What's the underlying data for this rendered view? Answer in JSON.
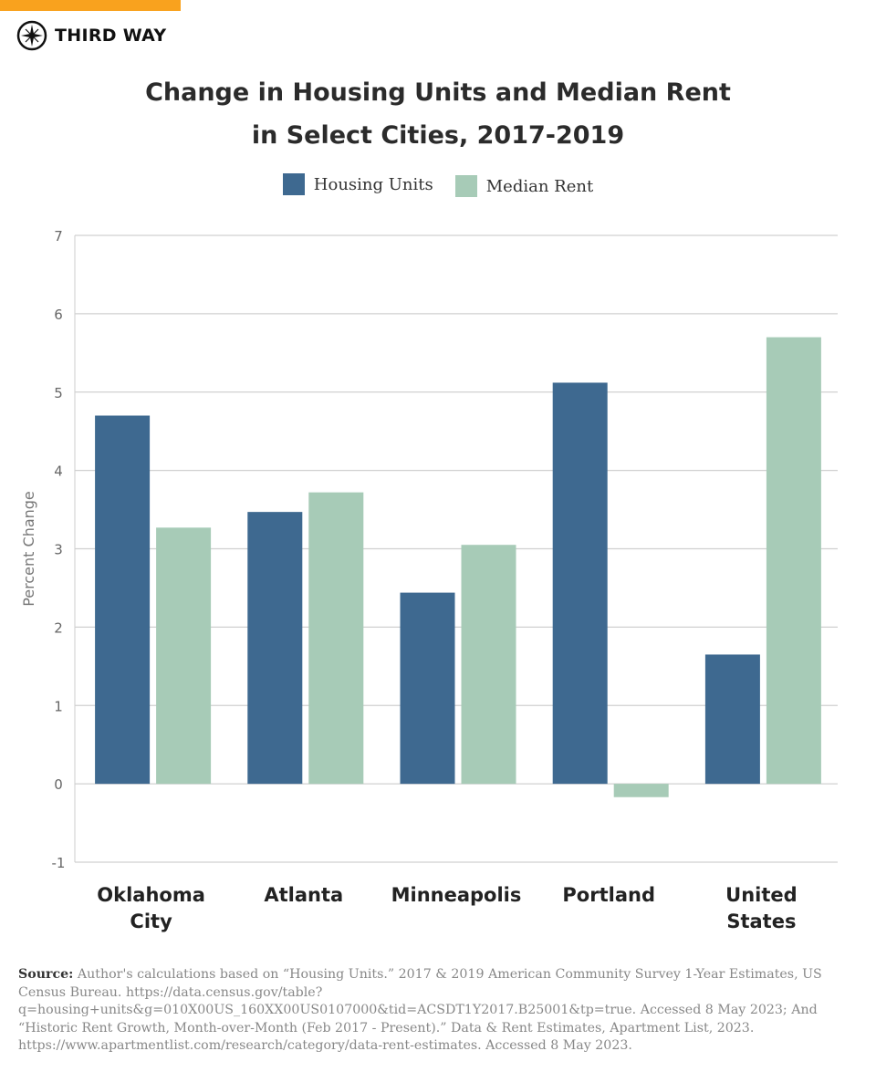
{
  "brand": {
    "name": "THIRD WAY",
    "icon": "compass-icon",
    "accent": "#f9a21e"
  },
  "chart_data": {
    "type": "bar",
    "title": "Change in Housing Units and Median Rent in Select Cities, 2017-2019",
    "title_lines": [
      "Change in Housing Units and Median Rent",
      "in Select Cities, 2017-2019"
    ],
    "categories": [
      [
        "Oklahoma",
        "City"
      ],
      [
        "Atlanta"
      ],
      [
        "Minneapolis"
      ],
      [
        "Portland"
      ],
      [
        "United",
        "States"
      ]
    ],
    "series": [
      {
        "name": "Housing Units",
        "color": "#3e6990",
        "values": [
          4.7,
          3.47,
          2.44,
          5.12,
          1.65
        ]
      },
      {
        "name": "Median Rent",
        "color": "#a7cbb7",
        "values": [
          3.27,
          3.72,
          3.05,
          -0.17,
          5.7
        ]
      }
    ],
    "xlabel": "",
    "ylabel": "Percent Change",
    "ylim": [
      -1,
      7
    ],
    "yticks": [
      -1,
      0,
      1,
      2,
      3,
      4,
      5,
      6,
      7
    ],
    "grid": true,
    "legend": "top-center"
  },
  "source": {
    "label": "Source:",
    "text": "Author's calculations based on “Housing Units.” 2017 & 2019 American Community Survey 1-Year Estimates, US Census Bureau. https://data.census.gov/table?q=housing+units&g=010X00US_160XX00US0107000&tid=ACSDT1Y2017.B25001&tp=true. Accessed 8 May 2023; And “Historic Rent Growth, Month-over-Month (Feb 2017 - Present).” Data & Rent Estimates, Apartment List, 2023. https://www.apartmentlist.com/research/category/data-rent-estimates. Accessed 8 May 2023."
  }
}
